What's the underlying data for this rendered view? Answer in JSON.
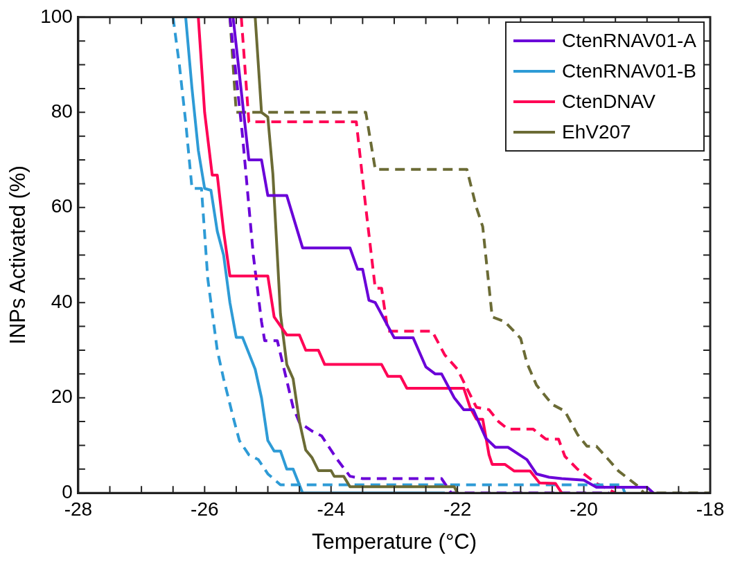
{
  "chart_data": {
    "type": "line",
    "xlabel": "Temperature (°C)",
    "ylabel": "INPs Activated (%)",
    "xlim": [
      -28,
      -18
    ],
    "ylim": [
      0,
      100
    ],
    "xticks": [
      -28,
      {
        "value": -27.5,
        "label": null
      },
      {
        "value": -27,
        "label": null
      },
      {
        "value": -26.5,
        "label": null
      },
      -26,
      {
        "value": -25.5,
        "label": null
      },
      {
        "value": -25,
        "label": null
      },
      {
        "value": -24.5,
        "label": null
      },
      -24,
      {
        "value": -23.5,
        "label": null
      },
      {
        "value": -23,
        "label": null
      },
      {
        "value": -22.5,
        "label": null
      },
      -22,
      {
        "value": -21.5,
        "label": null
      },
      {
        "value": -21,
        "label": null
      },
      {
        "value": -20.5,
        "label": null
      },
      -20,
      {
        "value": -19.5,
        "label": null
      },
      {
        "value": -19,
        "label": null
      },
      {
        "value": -18.5,
        "label": null
      },
      -18
    ],
    "yticks": [
      0,
      {
        "value": 5,
        "label": null
      },
      {
        "value": 10,
        "label": null
      },
      {
        "value": 15,
        "label": null
      },
      20,
      {
        "value": 25,
        "label": null
      },
      {
        "value": 30,
        "label": null
      },
      {
        "value": 35,
        "label": null
      },
      40,
      {
        "value": 45,
        "label": null
      },
      {
        "value": 50,
        "label": null
      },
      {
        "value": 55,
        "label": null
      },
      60,
      {
        "value": 65,
        "label": null
      },
      {
        "value": 70,
        "label": null
      },
      {
        "value": 75,
        "label": null
      },
      80,
      {
        "value": 85,
        "label": null
      },
      {
        "value": 90,
        "label": null
      },
      {
        "value": 95,
        "label": null
      },
      100
    ],
    "grid": false,
    "legend": "top right",
    "marker": "none",
    "series": [
      {
        "name": "CtenRNAV01-A",
        "color": "#6a00d8",
        "line_style": "solid",
        "x": [
          -25.55,
          -25.3,
          -25.1,
          -25.0,
          -24.7,
          -24.45,
          -23.7,
          -23.58,
          -23.5,
          -23.4,
          -23.3,
          -23.0,
          -22.7,
          -22.5,
          -22.35,
          -22.25,
          -22.05,
          -21.9,
          -21.75,
          -21.55,
          -21.4,
          -21.2,
          -20.9,
          -20.75,
          -20.55,
          -20.35,
          -20.0,
          -19.8,
          -19.0,
          -18.9
        ],
        "values": [
          100,
          70,
          70,
          62.5,
          62.5,
          51.5,
          51.5,
          47,
          47,
          40.5,
          40,
          32.6,
          32.6,
          26.5,
          25,
          25,
          20,
          17.5,
          17.5,
          11.5,
          9.6,
          9.6,
          7,
          4,
          3.3,
          3,
          2.7,
          1.2,
          1.2,
          0
        ]
      },
      {
        "name": "CtenRNAV01-B",
        "color": "#2e9bd6",
        "line_style": "solid",
        "x": [
          -26.3,
          -26.2,
          -26.1,
          -26.0,
          -25.9,
          -25.8,
          -25.7,
          -25.6,
          -25.5,
          -25.4,
          -25.2,
          -25.1,
          -25.0,
          -24.9,
          -24.8,
          -24.7,
          -24.6,
          -24.45,
          -22.2
        ],
        "values": [
          100,
          85,
          72,
          64,
          63.6,
          55,
          50,
          40,
          32.7,
          32.7,
          26,
          20,
          11,
          8.8,
          8.8,
          5,
          5,
          0,
          0
        ]
      },
      {
        "name": "CtenDNAV",
        "color": "#ff0055",
        "line_style": "solid",
        "x": [
          -26.1,
          -26.0,
          -25.88,
          -25.8,
          -25.7,
          -25.6,
          -25.0,
          -24.9,
          -24.7,
          -24.5,
          -24.4,
          -24.2,
          -24.1,
          -23.2,
          -23.1,
          -22.9,
          -22.8,
          -21.9,
          -21.8,
          -21.7,
          -21.6,
          -21.5,
          -21.45,
          -21.25,
          -21.1,
          -20.85,
          -20.7,
          -20.45,
          -20.35
        ],
        "values": [
          100,
          80,
          66.8,
          66.8,
          55,
          45.6,
          45.6,
          37,
          33.2,
          33.2,
          30,
          30,
          27,
          27,
          24.5,
          24.5,
          22,
          22,
          18,
          15.5,
          15.5,
          8,
          6,
          6,
          4.6,
          4.6,
          2.1,
          2,
          0
        ]
      },
      {
        "name": "EhV207",
        "color": "#6b6b35",
        "line_style": "solid",
        "x": [
          -25.2,
          -25.1,
          -25.0,
          -24.92,
          -24.85,
          -24.8,
          -24.7,
          -24.6,
          -24.5,
          -24.4,
          -24.3,
          -24.2,
          -24.0,
          -23.95,
          -23.8,
          -23.7,
          -22.05,
          -22.0
        ],
        "values": [
          100,
          80,
          79,
          67,
          50,
          37.6,
          27,
          24,
          15,
          9,
          7.4,
          4.7,
          4.7,
          3.5,
          3.5,
          1.3,
          1.3,
          0
        ]
      },
      {
        "color": "#6a00d8",
        "line_style": "dashed",
        "x": [
          -25.6,
          -25.4,
          -25.23,
          -25.1,
          -25.05,
          -24.85,
          -24.6,
          -24.5,
          -24.3,
          -24.15,
          -23.9,
          -23.7,
          -23.5,
          -22.25,
          -22.1,
          -19.6
        ],
        "values": [
          100,
          75,
          50,
          36,
          32,
          32,
          18,
          14.8,
          13,
          12,
          7,
          3.5,
          3,
          3,
          0,
          0
        ]
      },
      {
        "color": "#2e9bd6",
        "line_style": "dashed",
        "x": [
          -26.5,
          -26.4,
          -26.3,
          -26.2,
          -26.05,
          -25.95,
          -25.8,
          -25.7,
          -25.55,
          -25.45,
          -25.3,
          -25.15,
          -25.0,
          -24.8,
          -19.4,
          -19.35
        ],
        "values": [
          100,
          90,
          78,
          64,
          64,
          45,
          30,
          24,
          16,
          11,
          8,
          7,
          4,
          1.7,
          1.7,
          0
        ]
      },
      {
        "color": "#ff0055",
        "line_style": "dashed",
        "x": [
          -25.42,
          -25.3,
          -23.6,
          -23.45,
          -23.3,
          -23.2,
          -23.1,
          -22.4,
          -22.2,
          -22.0,
          -21.7,
          -21.5,
          -21.35,
          -21.2,
          -20.8,
          -20.6,
          -20.4,
          -20.3,
          -20.1,
          -19.8,
          -19.5
        ],
        "values": [
          100,
          78,
          78,
          60,
          43,
          43,
          34,
          34,
          29,
          26,
          18,
          17.5,
          15,
          13.4,
          13.4,
          11.3,
          11.3,
          7.7,
          5,
          2,
          0
        ]
      },
      {
        "color": "#6b6b35",
        "line_style": "dashed",
        "x": [
          -25.6,
          -25.5,
          -23.45,
          -23.3,
          -21.85,
          -21.7,
          -21.6,
          -21.45,
          -21.25,
          -21.0,
          -20.9,
          -20.75,
          -20.5,
          -20.3,
          -20.1,
          -19.95,
          -19.8,
          -19.63,
          -19.45,
          -19.15,
          -19.05,
          -18
        ],
        "values": [
          100,
          80,
          80,
          68,
          68,
          60,
          56,
          37,
          36,
          32.5,
          27.3,
          22.7,
          18.6,
          17.2,
          12.3,
          9.8,
          9.8,
          7.3,
          4.6,
          1.5,
          0,
          0
        ]
      }
    ]
  }
}
